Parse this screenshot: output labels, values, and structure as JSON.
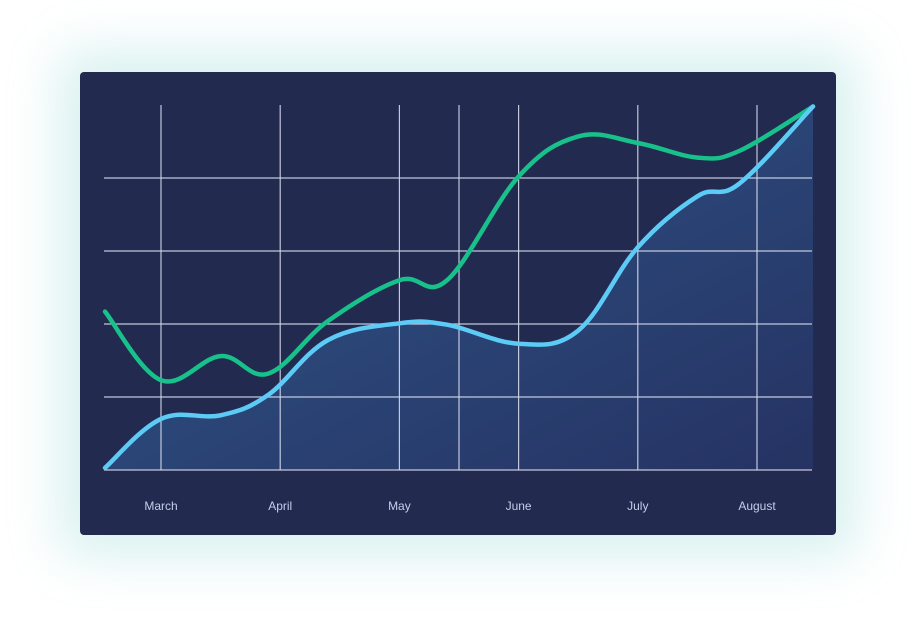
{
  "chart_data": {
    "type": "line",
    "title": "",
    "xlabel": "",
    "ylabel": "",
    "categories": [
      "March",
      "April",
      "May",
      "June",
      "July",
      "August"
    ],
    "ylim": [
      0,
      5
    ],
    "grid": true,
    "legend": "none",
    "x": [
      -0.47,
      0.0,
      0.5,
      0.9,
      1.4,
      2.0,
      2.4,
      3.0,
      3.5,
      4.0,
      4.5,
      4.85,
      5.47
    ],
    "series": [
      {
        "color": "#18c08a",
        "values": [
          2.17,
          1.23,
          1.56,
          1.32,
          2.04,
          2.6,
          2.6,
          4.02,
          4.57,
          4.48,
          4.28,
          4.37,
          4.98
        ],
        "fill": false
      },
      {
        "color": "#5ccbf5",
        "values": [
          0.03,
          0.7,
          0.75,
          1.03,
          1.78,
          2.01,
          1.99,
          1.73,
          1.91,
          3.05,
          3.75,
          3.92,
          4.98
        ],
        "fill": true
      }
    ],
    "colors": {
      "background": "#222a50",
      "grid": "#d4d8ea",
      "area_top": "#2f5a8c",
      "area_bottom": "#263364"
    }
  }
}
